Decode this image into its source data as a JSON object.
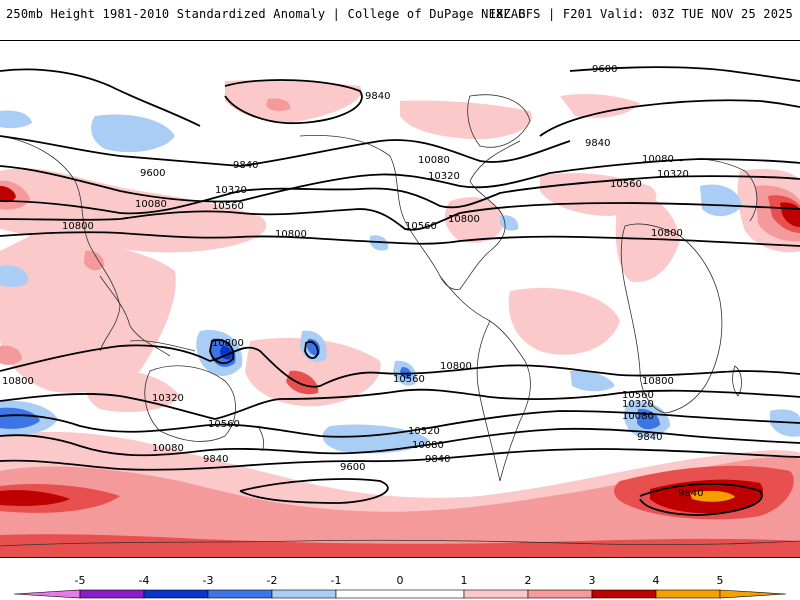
{
  "header": {
    "title_left": "250mb Height 1981-2010 Standardized Anomaly | College of DuPage NEXLAB",
    "title_right": "18Z GFS | F201 Valid: 03Z TUE NOV 25 2025"
  },
  "colors": {
    "neg5": "#e879e8",
    "neg4": "#8a1cc9",
    "neg3": "#0a35c9",
    "neg2": "#3d74e6",
    "neg1": "#a9cdf5",
    "zero": "#ffffff",
    "pos1": "#fbc9c9",
    "pos2": "#f59a9a",
    "pos3": "#e85050",
    "pos4": "#bf0000",
    "pos5": "#f5a000"
  },
  "colorbar": {
    "ticks": [
      "-5",
      "-4",
      "-3",
      "-2",
      "-1",
      "0",
      "1",
      "2",
      "3",
      "4",
      "5"
    ]
  },
  "contour_labels": {
    "l9600_ne": "9600",
    "l9840_nc": "9840",
    "l9840_ne": "9840",
    "l9600_nw": "9600",
    "l9840_nw": "9840",
    "l10080_nw": "10080",
    "l10320_nw": "10320",
    "l10560_nw": "10560",
    "l10800_w": "10800",
    "l10800_nw2": "10800",
    "l10080_us": "10080",
    "l10320_us": "10320",
    "l10800_us": "10800",
    "l10560_us": "10560",
    "l10080_ne": "10080",
    "l10320_ne": "10320",
    "l10560_ne": "10560",
    "l10800_ne": "10800",
    "l10800_sw": "10800",
    "l10800_pac": "10800",
    "l10800_spc": "10800",
    "l10560_sa": "10560",
    "l10800_sa": "10800",
    "l10320_aus": "10320",
    "l10560_aus": "10560",
    "l10080_sw": "10080",
    "l9840_sw": "9840",
    "l9600_s": "9600",
    "l10320_s": "10320",
    "l10080_s": "10080",
    "l9840_s": "9840",
    "l10560_se": "10560",
    "l10320_se": "10320",
    "l10080_se": "10080",
    "l9840_se": "9840",
    "l9840_sse": "9840"
  }
}
